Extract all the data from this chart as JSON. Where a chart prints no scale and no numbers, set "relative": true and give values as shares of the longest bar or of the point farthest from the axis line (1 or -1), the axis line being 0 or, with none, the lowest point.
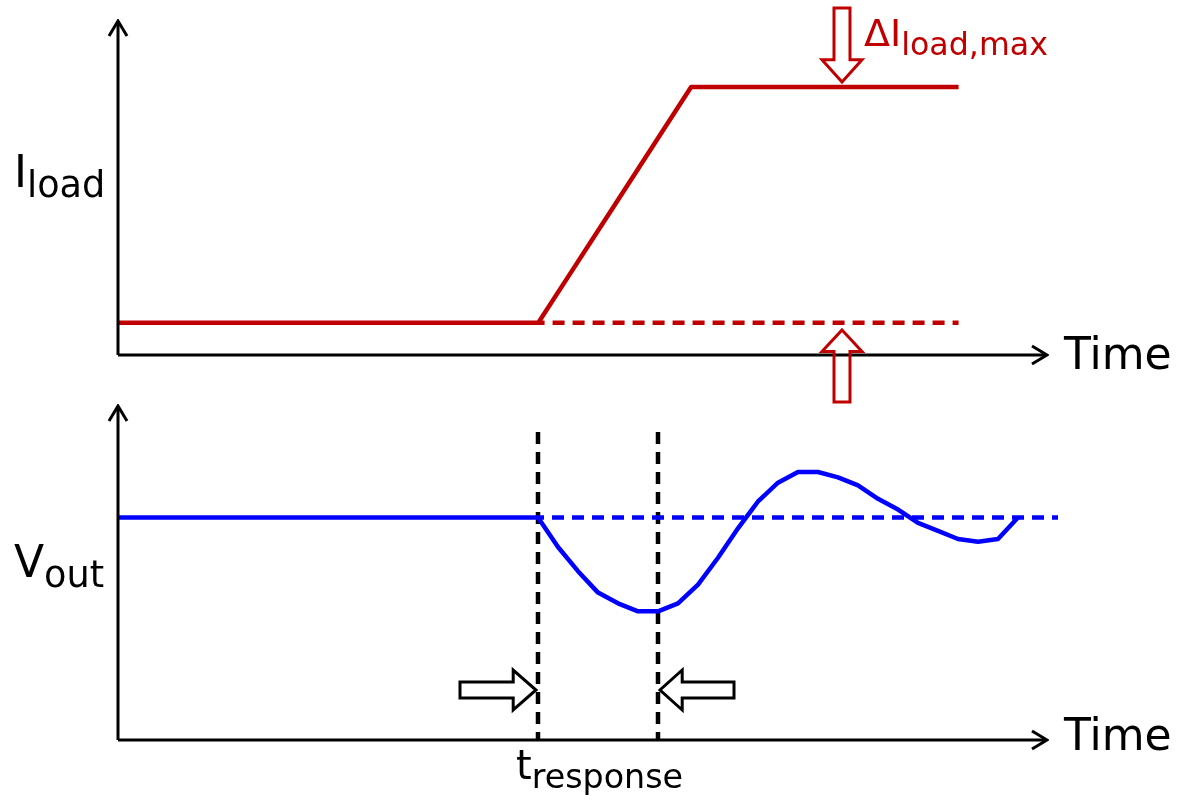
{
  "chart_data": [
    {
      "type": "line",
      "relative": true,
      "tick_labels": false,
      "marker": "none",
      "ylabel": "I$_{load}$",
      "xlabel": "Time",
      "annotations": [
        "ΔI$_{load,max}$"
      ],
      "categories": [
        null,
        null,
        null,
        null,
        null,
        null,
        null,
        null,
        null,
        null,
        null,
        null,
        null,
        null,
        null,
        null,
        null,
        null,
        null,
        null,
        null,
        null,
        null,
        null,
        null
      ],
      "series": [
        {
          "color": "#c00000",
          "line_style": "solid",
          "values": [
            0.12,
            0.12,
            0.12,
            0.12,
            0.12,
            0.12,
            0.12,
            0.12,
            0.12,
            0.12,
            0.12,
            0.12,
            0.34,
            0.56,
            0.78,
            1,
            1,
            1,
            1,
            1,
            1,
            1,
            1,
            null,
            null
          ]
        },
        {
          "color": "#c00000",
          "line_style": "dashed",
          "values": [
            null,
            null,
            null,
            null,
            null,
            null,
            null,
            null,
            null,
            null,
            null,
            0.12,
            0.12,
            0.12,
            0.12,
            0.12,
            0.12,
            0.12,
            0.12,
            0.12,
            0.12,
            0.12,
            0.12,
            null,
            null
          ]
        }
      ]
    },
    {
      "type": "line",
      "relative": true,
      "tick_labels": false,
      "marker": "none",
      "ylabel": "V$_{out}$",
      "xlabel": "Time",
      "annotations": [
        "t$_{response}$"
      ],
      "categories": [
        null,
        null,
        null,
        null,
        null,
        null,
        null,
        null,
        null,
        null,
        null,
        null,
        null,
        null,
        null,
        null,
        null,
        null,
        null,
        null,
        null,
        null,
        null,
        null,
        null,
        null,
        null,
        null,
        null,
        null,
        null,
        null,
        null,
        null,
        null,
        null,
        null,
        null,
        null,
        null,
        null,
        null,
        null,
        null,
        null,
        null,
        null,
        null
      ],
      "series": [
        {
          "color": "#0000ff",
          "line_style": "solid",
          "values": [
            0.83,
            0.83,
            0.83,
            0.83,
            0.83,
            0.83,
            0.83,
            0.83,
            0.83,
            0.83,
            0.83,
            0.83,
            0.83,
            0.83,
            0.83,
            0.83,
            0.83,
            0.83,
            0.83,
            0.83,
            0.83,
            0.83,
            0.72,
            0.63,
            0.55,
            0.51,
            0.48,
            0.48,
            0.51,
            0.58,
            0.68,
            0.79,
            0.89,
            0.96,
            1,
            1,
            0.98,
            0.95,
            0.9,
            0.86,
            0.81,
            0.78,
            0.75,
            0.74,
            0.75,
            0.83,
            null,
            null
          ]
        },
        {
          "color": "#0000ff",
          "line_style": "dashed",
          "values": [
            null,
            null,
            null,
            null,
            null,
            null,
            null,
            null,
            null,
            null,
            null,
            null,
            null,
            null,
            null,
            null,
            null,
            null,
            null,
            null,
            null,
            0.83,
            0.83,
            0.83,
            0.83,
            0.83,
            0.83,
            0.83,
            0.83,
            0.83,
            0.83,
            0.83,
            0.83,
            0.83,
            0.83,
            0.83,
            0.83,
            0.83,
            0.83,
            0.83,
            0.83,
            0.83,
            0.83,
            0.83,
            0.83,
            0.83,
            0.83,
            0.83
          ]
        }
      ]
    }
  ]
}
